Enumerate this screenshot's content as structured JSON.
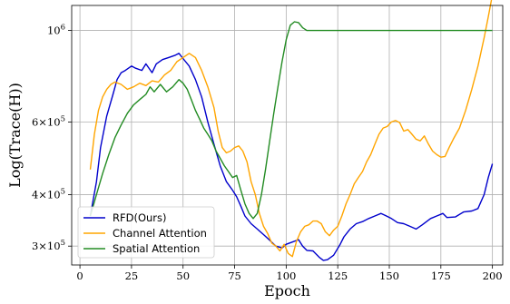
{
  "chart_data": {
    "type": "line",
    "title": "",
    "xlabel": "Epoch",
    "ylabel": "Log(Trace(H))",
    "xlim": [
      -4,
      205
    ],
    "ylim": [
      270000,
      1150000
    ],
    "yscale": "log",
    "grid": true,
    "legend_position": "lower-left",
    "x_ticks": [
      0,
      25,
      50,
      75,
      100,
      125,
      150,
      175,
      200
    ],
    "x_tick_labels": [
      "0",
      "25",
      "50",
      "75",
      "100",
      "125",
      "150",
      "175",
      "200"
    ],
    "y_ticks": [
      {
        "value": 300000,
        "mantissa": "3",
        "base": "×10",
        "exp": "5"
      },
      {
        "value": 400000,
        "mantissa": "4",
        "base": "×10",
        "exp": "5"
      },
      {
        "value": 600000,
        "mantissa": "6",
        "base": "×10",
        "exp": "5"
      },
      {
        "value": 1000000,
        "mantissa": "",
        "base": "10",
        "exp": "6"
      }
    ],
    "series": [
      {
        "name": "RFD(Ours)",
        "color": "#0000cc",
        "points": [
          [
            5,
            355000
          ],
          [
            8,
            430000
          ],
          [
            10,
            520000
          ],
          [
            13,
            620000
          ],
          [
            16,
            700000
          ],
          [
            18,
            760000
          ],
          [
            20,
            790000
          ],
          [
            22,
            800000
          ],
          [
            25,
            820000
          ],
          [
            27,
            810000
          ],
          [
            30,
            800000
          ],
          [
            32,
            830000
          ],
          [
            35,
            790000
          ],
          [
            37,
            830000
          ],
          [
            40,
            850000
          ],
          [
            43,
            860000
          ],
          [
            46,
            870000
          ],
          [
            48,
            880000
          ],
          [
            50,
            855000
          ],
          [
            53,
            820000
          ],
          [
            56,
            760000
          ],
          [
            59,
            690000
          ],
          [
            62,
            600000
          ],
          [
            65,
            530000
          ],
          [
            68,
            470000
          ],
          [
            71,
            430000
          ],
          [
            74,
            410000
          ],
          [
            76,
            395000
          ],
          [
            78,
            375000
          ],
          [
            80,
            355000
          ],
          [
            83,
            340000
          ],
          [
            86,
            330000
          ],
          [
            89,
            320000
          ],
          [
            92,
            310000
          ],
          [
            95,
            300000
          ],
          [
            98,
            297000
          ],
          [
            100,
            303000
          ],
          [
            103,
            307000
          ],
          [
            106,
            311000
          ],
          [
            108,
            300000
          ],
          [
            110,
            293000
          ],
          [
            113,
            292000
          ],
          [
            116,
            282000
          ],
          [
            118,
            277000
          ],
          [
            120,
            278000
          ],
          [
            123,
            285000
          ],
          [
            126,
            302000
          ],
          [
            128,
            316000
          ],
          [
            131,
            330000
          ],
          [
            134,
            340000
          ],
          [
            137,
            344000
          ],
          [
            140,
            350000
          ],
          [
            143,
            355000
          ],
          [
            146,
            360000
          ],
          [
            148,
            356000
          ],
          [
            151,
            350000
          ],
          [
            154,
            342000
          ],
          [
            157,
            340000
          ],
          [
            160,
            335000
          ],
          [
            163,
            330000
          ],
          [
            166,
            338000
          ],
          [
            170,
            350000
          ],
          [
            173,
            355000
          ],
          [
            176,
            360000
          ],
          [
            178,
            352000
          ],
          [
            182,
            353000
          ],
          [
            186,
            363000
          ],
          [
            190,
            365000
          ],
          [
            193,
            370000
          ],
          [
            196,
            400000
          ],
          [
            198,
            440000
          ],
          [
            200,
            475000
          ]
        ]
      },
      {
        "name": "Channel Attention",
        "color": "#ffa500",
        "points": [
          [
            5,
            460000
          ],
          [
            7,
            560000
          ],
          [
            9,
            640000
          ],
          [
            11,
            690000
          ],
          [
            13,
            720000
          ],
          [
            15,
            740000
          ],
          [
            17,
            750000
          ],
          [
            20,
            740000
          ],
          [
            23,
            720000
          ],
          [
            26,
            730000
          ],
          [
            29,
            745000
          ],
          [
            32,
            735000
          ],
          [
            35,
            755000
          ],
          [
            38,
            750000
          ],
          [
            41,
            780000
          ],
          [
            44,
            800000
          ],
          [
            47,
            840000
          ],
          [
            50,
            860000
          ],
          [
            53,
            880000
          ],
          [
            56,
            860000
          ],
          [
            59,
            800000
          ],
          [
            62,
            730000
          ],
          [
            65,
            650000
          ],
          [
            67,
            570000
          ],
          [
            69,
            520000
          ],
          [
            71,
            505000
          ],
          [
            73,
            510000
          ],
          [
            75,
            520000
          ],
          [
            77,
            525000
          ],
          [
            79,
            510000
          ],
          [
            81,
            480000
          ],
          [
            83,
            430000
          ],
          [
            85,
            400000
          ],
          [
            87,
            360000
          ],
          [
            89,
            335000
          ],
          [
            91,
            322000
          ],
          [
            93,
            305000
          ],
          [
            95,
            300000
          ],
          [
            97,
            292000
          ],
          [
            99,
            303000
          ],
          [
            101,
            288000
          ],
          [
            103,
            283000
          ],
          [
            105,
            308000
          ],
          [
            107,
            325000
          ],
          [
            109,
            335000
          ],
          [
            111,
            338000
          ],
          [
            113,
            345000
          ],
          [
            115,
            345000
          ],
          [
            117,
            340000
          ],
          [
            119,
            325000
          ],
          [
            121,
            318000
          ],
          [
            123,
            328000
          ],
          [
            125,
            335000
          ],
          [
            127,
            355000
          ],
          [
            129,
            380000
          ],
          [
            131,
            400000
          ],
          [
            133,
            425000
          ],
          [
            135,
            440000
          ],
          [
            137,
            455000
          ],
          [
            139,
            480000
          ],
          [
            141,
            500000
          ],
          [
            143,
            530000
          ],
          [
            145,
            560000
          ],
          [
            147,
            580000
          ],
          [
            149,
            585000
          ],
          [
            151,
            600000
          ],
          [
            153,
            605000
          ],
          [
            155,
            598000
          ],
          [
            157,
            570000
          ],
          [
            159,
            575000
          ],
          [
            161,
            560000
          ],
          [
            163,
            545000
          ],
          [
            165,
            540000
          ],
          [
            167,
            555000
          ],
          [
            169,
            530000
          ],
          [
            171,
            510000
          ],
          [
            173,
            500000
          ],
          [
            175,
            493000
          ],
          [
            177,
            495000
          ],
          [
            179,
            520000
          ],
          [
            181,
            545000
          ],
          [
            184,
            580000
          ],
          [
            187,
            640000
          ],
          [
            190,
            720000
          ],
          [
            193,
            820000
          ],
          [
            196,
            960000
          ],
          [
            198,
            1080000
          ],
          [
            200,
            1220000
          ]
        ]
      },
      {
        "name": "Spatial Attention",
        "color": "#228b22",
        "points": [
          [
            5,
            355000
          ],
          [
            8,
            400000
          ],
          [
            11,
            450000
          ],
          [
            14,
            500000
          ],
          [
            17,
            550000
          ],
          [
            20,
            590000
          ],
          [
            23,
            630000
          ],
          [
            26,
            660000
          ],
          [
            29,
            680000
          ],
          [
            32,
            700000
          ],
          [
            34,
            730000
          ],
          [
            36,
            710000
          ],
          [
            39,
            740000
          ],
          [
            42,
            710000
          ],
          [
            45,
            730000
          ],
          [
            48,
            760000
          ],
          [
            50,
            745000
          ],
          [
            52,
            720000
          ],
          [
            54,
            680000
          ],
          [
            56,
            640000
          ],
          [
            58,
            610000
          ],
          [
            60,
            580000
          ],
          [
            62,
            560000
          ],
          [
            64,
            540000
          ],
          [
            66,
            510000
          ],
          [
            68,
            490000
          ],
          [
            70,
            470000
          ],
          [
            72,
            455000
          ],
          [
            74,
            440000
          ],
          [
            76,
            445000
          ],
          [
            78,
            410000
          ],
          [
            80,
            380000
          ],
          [
            82,
            360000
          ],
          [
            84,
            350000
          ],
          [
            86,
            360000
          ],
          [
            88,
            400000
          ],
          [
            90,
            460000
          ],
          [
            92,
            540000
          ],
          [
            94,
            630000
          ],
          [
            96,
            730000
          ],
          [
            98,
            840000
          ],
          [
            100,
            950000
          ],
          [
            102,
            1030000
          ],
          [
            104,
            1050000
          ],
          [
            106,
            1045000
          ],
          [
            108,
            1015000
          ],
          [
            110,
            1000000
          ],
          [
            112,
            1000000
          ],
          [
            115,
            1000000
          ],
          [
            120,
            1000000
          ],
          [
            130,
            1000000
          ],
          [
            150,
            1000000
          ],
          [
            170,
            1000000
          ],
          [
            190,
            1000000
          ],
          [
            200,
            1000000
          ]
        ]
      }
    ]
  }
}
